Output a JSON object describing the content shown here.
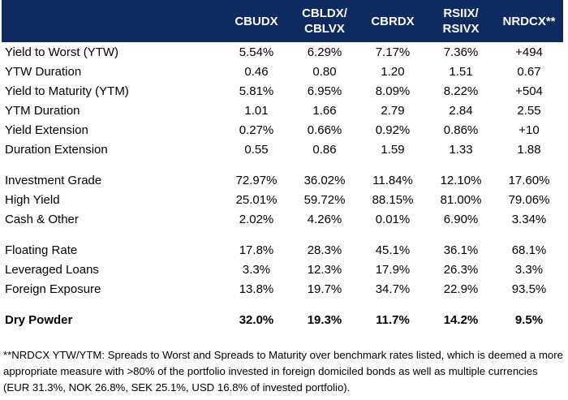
{
  "table": {
    "headers": [
      "",
      "CBUDX",
      "CBLDX/\nCBLVX",
      "CBRDX",
      "RSIIX/\nRSIVX",
      "NRDCX**"
    ],
    "header_lines": [
      [
        ""
      ],
      [
        "CBUDX"
      ],
      [
        "CBLDX/",
        "CBLVX"
      ],
      [
        "CBRDX"
      ],
      [
        "RSIIX/",
        "RSIVX"
      ],
      [
        "NRDCX**"
      ]
    ],
    "groups": [
      {
        "rows": [
          {
            "label": "Yield to Worst (YTW)",
            "values": [
              "5.54%",
              "6.29%",
              "7.17%",
              "7.36%",
              "+494"
            ]
          },
          {
            "label": "YTW Duration",
            "values": [
              "0.46",
              "0.80",
              "1.20",
              "1.51",
              "0.67"
            ]
          },
          {
            "label": "Yield to Maturity (YTM)",
            "values": [
              "5.81%",
              "6.95%",
              "8.09%",
              "8.22%",
              "+504"
            ]
          },
          {
            "label": "YTM Duration",
            "values": [
              "1.01",
              "1.66",
              "2.79",
              "2.84",
              "2.55"
            ]
          },
          {
            "label": "Yield Extension",
            "values": [
              "0.27%",
              "0.66%",
              "0.92%",
              "0.86%",
              "+10"
            ]
          },
          {
            "label": "Duration Extension",
            "values": [
              "0.55",
              "0.86",
              "1.59",
              "1.33",
              "1.88"
            ]
          }
        ]
      },
      {
        "rows": [
          {
            "label": "Investment Grade",
            "values": [
              "72.97%",
              "36.02%",
              "11.84%",
              "12.10%",
              "17.60%"
            ]
          },
          {
            "label": "High Yield",
            "values": [
              "25.01%",
              "59.72%",
              "88.15%",
              "81.00%",
              "79.06%"
            ]
          },
          {
            "label": "Cash & Other",
            "values": [
              "2.02%",
              "4.26%",
              "0.01%",
              "6.90%",
              "3.34%"
            ]
          }
        ]
      },
      {
        "rows": [
          {
            "label": "Floating Rate",
            "values": [
              "17.8%",
              "28.3%",
              "45.1%",
              "36.1%",
              "68.1%"
            ]
          },
          {
            "label": "Leveraged Loans",
            "values": [
              "3.3%",
              "12.3%",
              "17.9%",
              "26.3%",
              "3.3%"
            ]
          },
          {
            "label": "Foreign Exposure",
            "values": [
              "13.8%",
              "19.7%",
              "34.7%",
              "22.9%",
              "93.5%"
            ]
          }
        ]
      },
      {
        "bold": true,
        "rows": [
          {
            "label": "Dry Powder",
            "values": [
              "32.0%",
              "19.3%",
              "11.7%",
              "14.2%",
              "9.5%"
            ]
          }
        ]
      }
    ]
  },
  "footnote": "**NRDCX YTW/YTM: Spreads to Worst and Spreads to Maturity over benchmark rates listed, which is deemed a more appropriate measure with >80% of the portfolio invested in foreign domiciled bonds as well as multiple currencies (EUR 31.3%, NOK 26.8%, SEK 25.1%, USD 16.8% of invested portfolio).",
  "colors": {
    "header_bg": "#0f2a5e",
    "header_text": "#ffffff"
  }
}
